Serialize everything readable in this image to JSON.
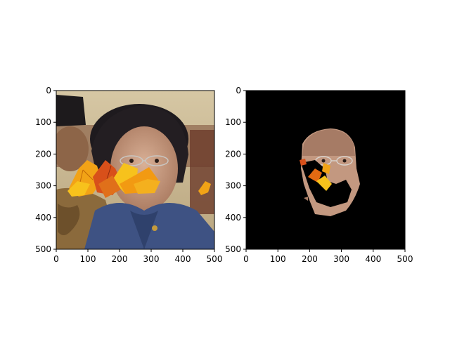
{
  "chart_data": [
    {
      "type": "image",
      "title": "",
      "xlabel": "",
      "ylabel": "",
      "xlim": [
        0,
        500
      ],
      "ylim": [
        500,
        0
      ],
      "xticks": [
        0,
        100,
        200,
        300,
        400,
        500
      ],
      "yticks": [
        0,
        100,
        200,
        300,
        400,
        500
      ],
      "content": "photo-with-leaves",
      "grid": false
    },
    {
      "type": "image",
      "title": "",
      "xlabel": "",
      "ylabel": "",
      "xlim": [
        0,
        500
      ],
      "ylim": [
        500,
        0
      ],
      "xticks": [
        0,
        100,
        200,
        300,
        400,
        500
      ],
      "yticks": [
        0,
        100,
        200,
        300,
        400,
        500
      ],
      "content": "face-mask-on-black",
      "grid": false
    }
  ],
  "colors": {
    "mask_background": "#000000",
    "leaf_orange": "#f29a12",
    "leaf_red": "#d8501a",
    "leaf_yellow": "#f7c21c",
    "jacket_blue": "#3e5283",
    "wall_beige": "#cdbb93",
    "skin": "#caa083"
  }
}
